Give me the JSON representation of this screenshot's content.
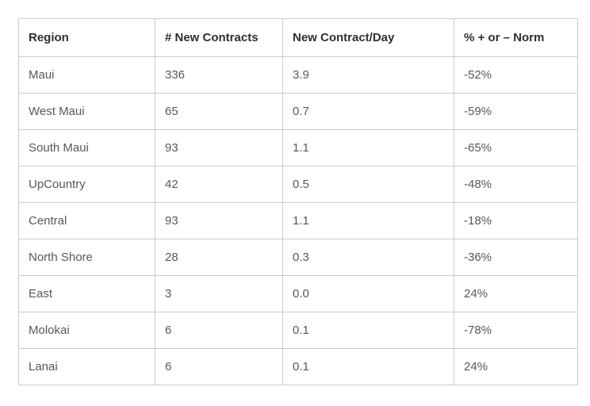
{
  "colors": {
    "background": "#ffffff",
    "border": "#cbcbcb",
    "header_text": "#2e2f33",
    "body_text": "#56585c"
  },
  "table": {
    "columns": {
      "region": "Region",
      "new_contracts": "# New Contracts",
      "per_day": "New Contract/Day",
      "pct_norm": "% + or – Norm"
    },
    "rows": [
      {
        "region": "Maui",
        "new_contracts": "336",
        "per_day": "3.9",
        "pct_norm": "-52%"
      },
      {
        "region": "West Maui",
        "new_contracts": "65",
        "per_day": "0.7",
        "pct_norm": "-59%"
      },
      {
        "region": "South Maui",
        "new_contracts": "93",
        "per_day": "1.1",
        "pct_norm": "-65%"
      },
      {
        "region": "UpCountry",
        "new_contracts": "42",
        "per_day": "0.5",
        "pct_norm": "-48%"
      },
      {
        "region": "Central",
        "new_contracts": "93",
        "per_day": "1.1",
        "pct_norm": "-18%"
      },
      {
        "region": "North Shore",
        "new_contracts": "28",
        "per_day": "0.3",
        "pct_norm": "-36%"
      },
      {
        "region": "East",
        "new_contracts": "3",
        "per_day": "0.0",
        "pct_norm": "24%"
      },
      {
        "region": "Molokai",
        "new_contracts": "6",
        "per_day": "0.1",
        "pct_norm": "-78%"
      },
      {
        "region": "Lanai",
        "new_contracts": "6",
        "per_day": "0.1",
        "pct_norm": "24%"
      }
    ]
  }
}
